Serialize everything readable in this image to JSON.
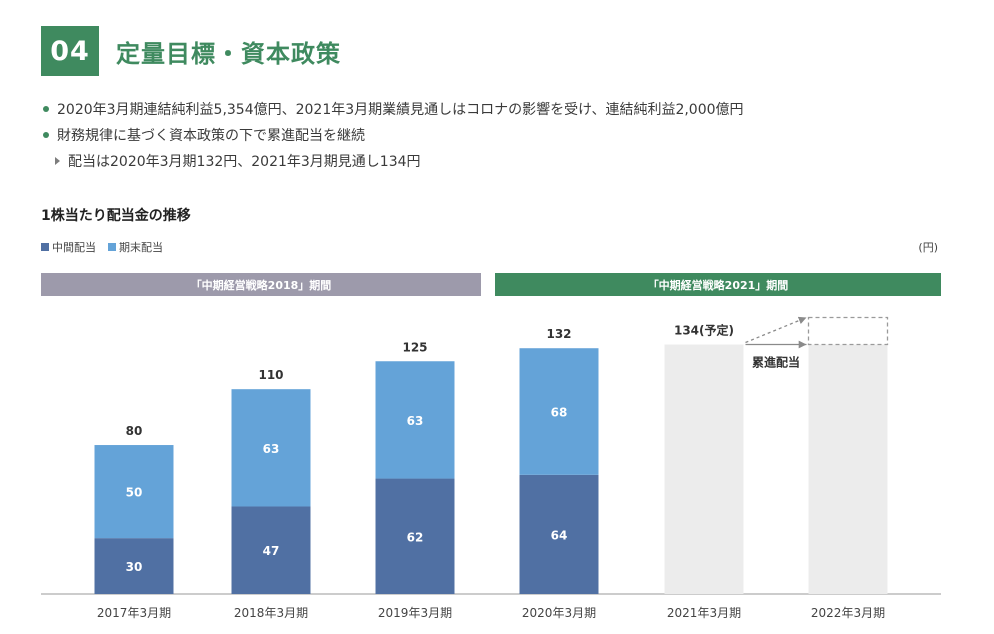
{
  "header": {
    "section_number": "04",
    "title": "定量目標・資本政策",
    "accent_color": "#3f8a5f"
  },
  "bullets": [
    {
      "type": "dot",
      "text": "2020年3月期連結純利益5,354億円、2021年3月期業績見通しはコロナの影響を受け、連結純利益2,000億円"
    },
    {
      "type": "dot",
      "text": "財務規律に基づく資本政策の下で累進配当を継続"
    },
    {
      "type": "arrow",
      "text": "配当は2020年3月期132円、2021年3月期見通し134円"
    }
  ],
  "chart_data": {
    "type": "bar",
    "stacked": true,
    "title": "1株当たり配当金の推移",
    "unit": "(円)",
    "categories": [
      "2017年3月期",
      "2018年3月期",
      "2019年3月期",
      "2020年3月期",
      "2021年3月期",
      "2022年3月期"
    ],
    "series": [
      {
        "name": "中間配当",
        "color": "#5070a3",
        "values": [
          30,
          47,
          62,
          64,
          null,
          null
        ]
      },
      {
        "name": "期末配当",
        "color": "#64a3d8",
        "values": [
          50,
          63,
          63,
          68,
          null,
          null
        ]
      }
    ],
    "totals": [
      "80",
      "110",
      "125",
      "132",
      "134(予定)",
      ""
    ],
    "forecast": {
      "values": [
        null,
        null,
        null,
        null,
        134,
        134
      ],
      "color": "#ececec",
      "annotation": "累進配当"
    },
    "periods": [
      {
        "label": "「中期経営戦略2018」期間",
        "color": "#9d9aab",
        "categories": [
          "2017年3月期",
          "2018年3月期",
          "2019年3月期"
        ]
      },
      {
        "label": "「中期経営戦略2021」期間",
        "color": "#3f8a5f",
        "categories": [
          "2020年3月期",
          "2021年3月期",
          "2022年3月期"
        ]
      }
    ],
    "ylim": [
      0,
      150
    ],
    "grid": false,
    "legend": "top-left"
  }
}
